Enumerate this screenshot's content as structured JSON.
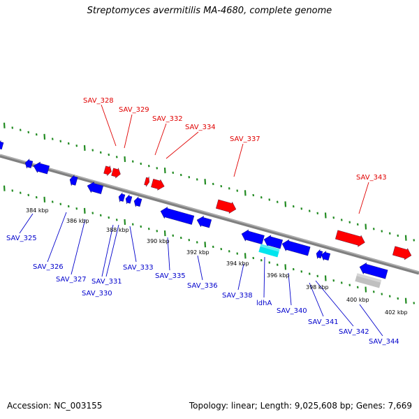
{
  "title": "Streptomyces avermitilis MA-4680, complete genome",
  "footer": {
    "accession": "Accession: NC_003155",
    "info": "Topology: linear; Length: 9,025,608 bp; Genes: 7,669"
  },
  "colors": {
    "forward_gene": "#ff0000",
    "reverse_gene": "#0000ff",
    "highlight_gene": "#00e5ee",
    "other_feature": "#c0c0c0",
    "backbone": "#808080",
    "tick": "#228b22"
  },
  "scale_labels": [
    "384 kbp",
    "386 kbp",
    "388 kbp",
    "390 kbp",
    "392 kbp",
    "394 kbp",
    "396 kbp",
    "398 kbp",
    "400 kbp",
    "402 kbp"
  ],
  "forward_labels": [
    "SAV_328",
    "SAV_329",
    "SAV_332",
    "SAV_334",
    "SAV_337",
    "SAV_343"
  ],
  "reverse_labels": [
    "SAV_325",
    "SAV_326",
    "SAV_327",
    "SAV_330",
    "SAV_331",
    "SAV_333",
    "SAV_335",
    "SAV_336",
    "SAV_338",
    "ldhA",
    "SAV_340",
    "SAV_341",
    "SAV_342",
    "SAV_344"
  ]
}
